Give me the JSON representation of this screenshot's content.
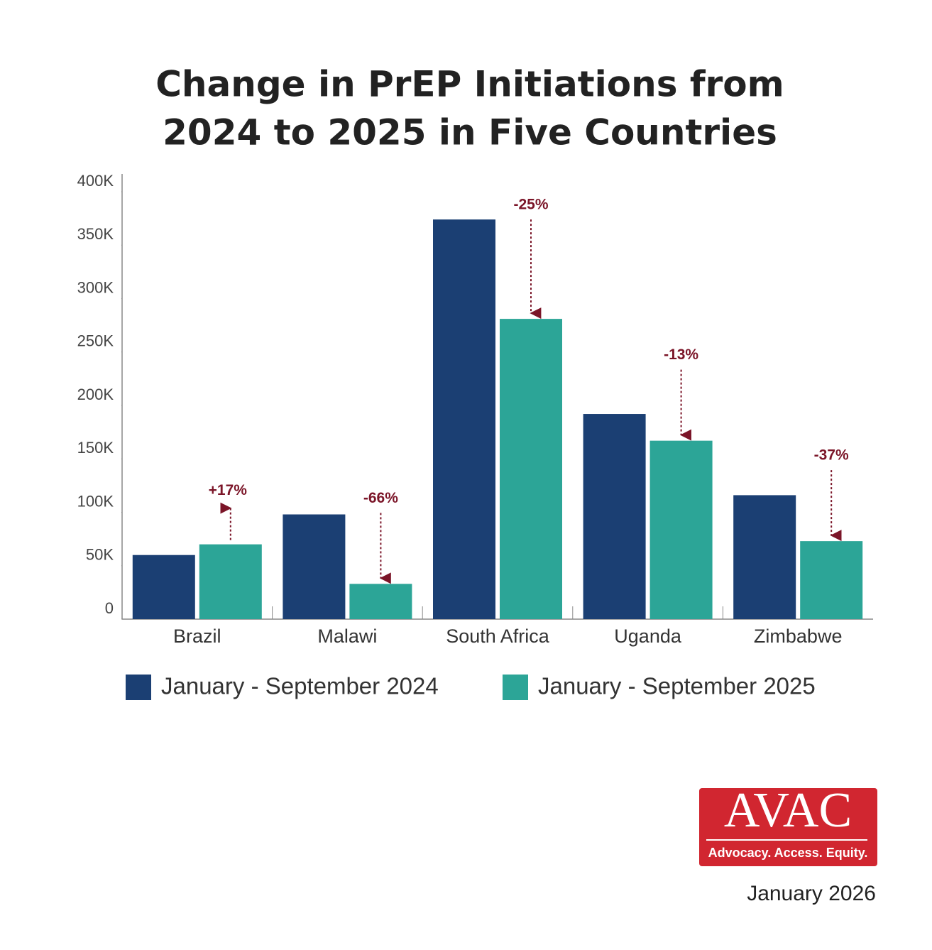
{
  "chart_data": {
    "type": "bar",
    "title": [
      "Change in PrEP Initiations from",
      "2024 to 2025 in Five Countries"
    ],
    "categories": [
      "Brazil",
      "Malawi",
      "South Africa",
      "Uganda",
      "Zimbabwe"
    ],
    "series": [
      {
        "name": "January - September 2024",
        "color": "#1b3f73",
        "values": [
          60000,
          98000,
          374000,
          192000,
          116000
        ]
      },
      {
        "name": "January - September 2025",
        "color": "#2ca597",
        "values": [
          70000,
          33000,
          281000,
          167000,
          73000
        ]
      }
    ],
    "change_labels": [
      "+17%",
      "-66%",
      "-25%",
      "-13%",
      "-37%"
    ],
    "ylim": [
      0,
      400000
    ],
    "yticks": [
      0,
      {
        "value": 50000,
        "label": "50K"
      },
      {
        "value": 100000,
        "label": "100K"
      },
      {
        "value": 150000,
        "label": "150K"
      },
      {
        "value": 200000,
        "label": "200K"
      },
      {
        "value": 250000,
        "label": "250K"
      },
      {
        "value": 300000,
        "label": "300K"
      },
      {
        "value": 350000,
        "label": "350K"
      },
      {
        "value": 400000,
        "label": "400K"
      }
    ],
    "grid": false,
    "legend": "bottom",
    "logo": {
      "name": "AVAC",
      "tagline": "Advocacy. Access. Equity."
    },
    "date": "January 2026"
  }
}
